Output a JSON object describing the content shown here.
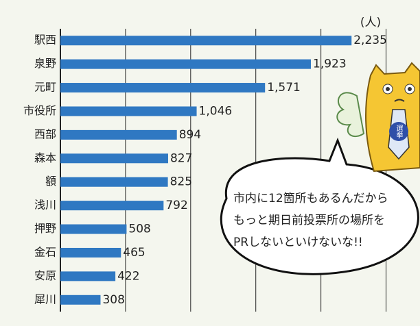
{
  "chart_data": {
    "type": "bar",
    "orientation": "horizontal",
    "categories": [
      "駅西",
      "泉野",
      "元町",
      "市役所",
      "西部",
      "森本",
      "額",
      "浅川",
      "押野",
      "金石",
      "安原",
      "犀川"
    ],
    "values": [
      2235,
      1923,
      1571,
      1046,
      894,
      827,
      825,
      792,
      508,
      465,
      422,
      308
    ],
    "value_labels": [
      "2,235",
      "1,923",
      "1,571",
      "1,046",
      "894",
      "827",
      "825",
      "792",
      "508",
      "465",
      "422",
      "308"
    ],
    "unit": "(人)",
    "color": "#2f78c2",
    "xlim": [
      0,
      2750
    ],
    "xticks": [
      0,
      500,
      1000,
      1500,
      2000,
      2500
    ],
    "grid": true,
    "annotations": [
      "市内に12箇所もあるんだから",
      "もっと期日前投票所の場所を",
      "PRしないといけないな!!"
    ],
    "badge": "選挙"
  }
}
